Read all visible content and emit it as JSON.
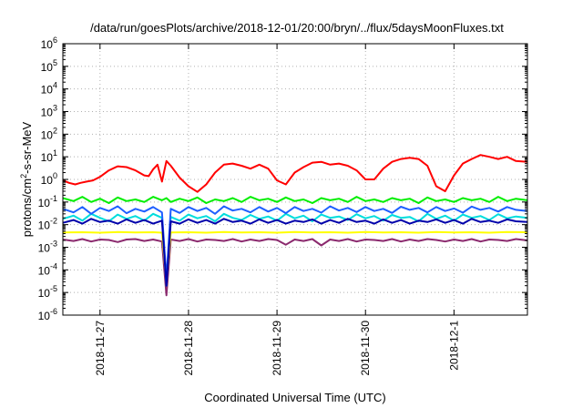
{
  "chart_data": {
    "type": "line",
    "title": "/data/run/goesPlots/archive/2018-12-01/20:00/bryn/../flux/5daysMoonFluxes.txt",
    "xlabel": "Coordinated Universal Time (UTC)",
    "ylabel": {
      "base": "protons/cm",
      "sup": "2",
      "rest": "-s-sr-MeV"
    },
    "yscale": "log",
    "ylim_exp": [
      -6,
      6
    ],
    "y_ticks": [
      {
        "base": "10",
        "exp": "6"
      },
      {
        "base": "10",
        "exp": "5"
      },
      {
        "base": "10",
        "exp": "4"
      },
      {
        "base": "10",
        "exp": "3"
      },
      {
        "base": "10",
        "exp": "2"
      },
      {
        "base": "10",
        "exp": "1"
      },
      {
        "base": "10",
        "exp": "0"
      },
      {
        "base": "10",
        "exp": "-1"
      },
      {
        "base": "10",
        "exp": "-2"
      },
      {
        "base": "10",
        "exp": "-3"
      },
      {
        "base": "10",
        "exp": "-4"
      },
      {
        "base": "10",
        "exp": "-5"
      },
      {
        "base": "10",
        "exp": "-6"
      }
    ],
    "xlim_days": [
      26.58,
      31.83
    ],
    "x_ticks": [
      {
        "label": "2018-11-27",
        "day": 27
      },
      {
        "label": "2018-11-28",
        "day": 28
      },
      {
        "label": "2018-11-29",
        "day": 29
      },
      {
        "label": "2018-11-30",
        "day": 30
      },
      {
        "label": "2018-12-1",
        "day": 31
      }
    ],
    "grid": true,
    "series": [
      {
        "color": "#ff0000",
        "x": [
          26.58,
          26.65,
          26.72,
          26.78,
          26.85,
          26.92,
          27.0,
          27.1,
          27.2,
          27.3,
          27.4,
          27.5,
          27.55,
          27.6,
          27.65,
          27.7,
          27.75,
          27.8,
          27.9,
          28.0,
          28.1,
          28.2,
          28.3,
          28.4,
          28.5,
          28.6,
          28.7,
          28.8,
          28.9,
          29.0,
          29.1,
          29.2,
          29.3,
          29.4,
          29.5,
          29.6,
          29.7,
          29.8,
          29.9,
          30.0,
          30.1,
          30.2,
          30.3,
          30.4,
          30.5,
          30.6,
          30.7,
          30.8,
          30.9,
          31.0,
          31.1,
          31.2,
          31.3,
          31.4,
          31.5,
          31.6,
          31.7,
          31.83
        ],
        "y": [
          0.9,
          0.7,
          0.6,
          0.7,
          0.8,
          0.9,
          1.3,
          2.5,
          3.8,
          3.5,
          2.5,
          1.5,
          1.4,
          2.8,
          4.5,
          0.8,
          6.5,
          4.0,
          1.2,
          0.5,
          0.28,
          0.6,
          2.0,
          4.5,
          5.0,
          4.0,
          3.0,
          4.5,
          3.0,
          0.9,
          0.6,
          2.0,
          3.5,
          5.5,
          6.0,
          4.5,
          5.0,
          4.0,
          2.5,
          1.0,
          1.0,
          3.0,
          6.0,
          8.0,
          9.0,
          8.0,
          4.0,
          0.5,
          0.3,
          1.5,
          5.0,
          8.0,
          12.0,
          10.0,
          8.0,
          10.0,
          6.5,
          6.0
        ]
      },
      {
        "color": "#00ee00",
        "x": [
          26.58,
          26.7,
          26.8,
          26.9,
          27.0,
          27.1,
          27.2,
          27.3,
          27.4,
          27.5,
          27.6,
          27.7,
          27.75,
          27.8,
          27.9,
          28.0,
          28.1,
          28.2,
          28.3,
          28.4,
          28.5,
          28.6,
          28.7,
          28.8,
          28.9,
          29.0,
          29.1,
          29.2,
          29.3,
          29.4,
          29.5,
          29.6,
          29.7,
          29.8,
          29.9,
          30.0,
          30.1,
          30.2,
          30.3,
          30.4,
          30.5,
          30.6,
          30.7,
          30.8,
          30.9,
          31.0,
          31.1,
          31.2,
          31.3,
          31.4,
          31.5,
          31.6,
          31.7,
          31.83
        ],
        "y": [
          0.15,
          0.11,
          0.17,
          0.1,
          0.14,
          0.09,
          0.16,
          0.11,
          0.13,
          0.1,
          0.17,
          0.12,
          0.15,
          0.1,
          0.14,
          0.11,
          0.16,
          0.09,
          0.13,
          0.11,
          0.15,
          0.1,
          0.17,
          0.12,
          0.14,
          0.1,
          0.16,
          0.11,
          0.13,
          0.09,
          0.15,
          0.12,
          0.14,
          0.1,
          0.17,
          0.11,
          0.13,
          0.1,
          0.15,
          0.12,
          0.14,
          0.09,
          0.16,
          0.11,
          0.13,
          0.1,
          0.15,
          0.12,
          0.14,
          0.1,
          0.17,
          0.11,
          0.14,
          0.12
        ]
      },
      {
        "color": "#00dddd",
        "x": [
          26.58,
          26.7,
          26.8,
          26.9,
          27.0,
          27.1,
          27.2,
          27.3,
          27.4,
          27.5,
          27.6,
          27.7,
          27.75,
          27.8,
          27.9,
          28.0,
          28.1,
          28.2,
          28.3,
          28.4,
          28.5,
          28.6,
          28.7,
          28.8,
          28.9,
          29.0,
          29.1,
          29.2,
          29.3,
          29.4,
          29.5,
          29.6,
          29.7,
          29.8,
          29.9,
          30.0,
          30.1,
          30.2,
          30.3,
          30.4,
          30.5,
          30.6,
          30.7,
          30.8,
          30.9,
          31.0,
          31.1,
          31.2,
          31.3,
          31.4,
          31.5,
          31.6,
          31.7,
          31.83
        ],
        "y": [
          0.018,
          0.025,
          0.015,
          0.03,
          0.02,
          0.014,
          0.028,
          0.018,
          0.024,
          0.015,
          0.03,
          0.02,
          2e-05,
          0.022,
          0.015,
          0.028,
          0.019,
          0.024,
          0.014,
          0.03,
          0.02,
          0.016,
          0.027,
          0.018,
          0.023,
          0.015,
          0.03,
          0.019,
          0.025,
          0.014,
          0.028,
          0.02,
          0.023,
          0.016,
          0.029,
          0.019,
          0.024,
          0.015,
          0.027,
          0.02,
          0.022,
          0.014,
          0.03,
          0.018,
          0.025,
          0.015,
          0.028,
          0.02,
          0.024,
          0.016,
          0.029,
          0.019,
          0.023,
          0.02
        ]
      },
      {
        "color": "#1e5fff",
        "x": [
          26.58,
          26.7,
          26.8,
          26.9,
          27.0,
          27.1,
          27.2,
          27.3,
          27.4,
          27.5,
          27.6,
          27.7,
          27.75,
          27.8,
          27.9,
          28.0,
          28.1,
          28.2,
          28.3,
          28.4,
          28.5,
          28.6,
          28.7,
          28.8,
          28.9,
          29.0,
          29.1,
          29.2,
          29.3,
          29.4,
          29.5,
          29.6,
          29.7,
          29.8,
          29.9,
          30.0,
          30.1,
          30.2,
          30.3,
          30.4,
          30.5,
          30.6,
          30.7,
          30.8,
          30.9,
          31.0,
          31.1,
          31.2,
          31.3,
          31.4,
          31.5,
          31.6,
          31.7,
          31.83
        ],
        "y": [
          0.05,
          0.035,
          0.06,
          0.03,
          0.055,
          0.04,
          0.065,
          0.032,
          0.05,
          0.038,
          0.06,
          0.035,
          4e-05,
          0.05,
          0.033,
          0.06,
          0.04,
          0.055,
          0.03,
          0.065,
          0.042,
          0.05,
          0.035,
          0.06,
          0.038,
          0.055,
          0.032,
          0.06,
          0.04,
          0.05,
          0.034,
          0.065,
          0.042,
          0.055,
          0.036,
          0.06,
          0.04,
          0.05,
          0.033,
          0.062,
          0.045,
          0.055,
          0.035,
          0.06,
          0.04,
          0.052,
          0.034,
          0.063,
          0.045,
          0.055,
          0.038,
          0.06,
          0.045,
          0.04
        ]
      },
      {
        "color": "#0000aa",
        "x": [
          26.58,
          26.7,
          26.8,
          26.9,
          27.0,
          27.1,
          27.2,
          27.3,
          27.4,
          27.5,
          27.6,
          27.7,
          27.75,
          27.8,
          27.9,
          28.0,
          28.1,
          28.2,
          28.3,
          28.4,
          28.5,
          28.6,
          28.7,
          28.8,
          28.9,
          29.0,
          29.1,
          29.2,
          29.3,
          29.4,
          29.5,
          29.6,
          29.7,
          29.8,
          29.9,
          30.0,
          30.1,
          30.2,
          30.3,
          30.4,
          30.5,
          30.6,
          30.7,
          30.8,
          30.9,
          31.0,
          31.1,
          31.2,
          31.3,
          31.4,
          31.5,
          31.6,
          31.7,
          31.83
        ],
        "y": [
          0.012,
          0.016,
          0.011,
          0.018,
          0.013,
          0.015,
          0.011,
          0.017,
          0.012,
          0.016,
          0.011,
          0.015,
          2e-05,
          0.014,
          0.011,
          0.017,
          0.012,
          0.016,
          0.011,
          0.018,
          0.013,
          0.015,
          0.011,
          0.017,
          0.012,
          0.016,
          0.011,
          0.015,
          0.013,
          0.017,
          0.011,
          0.016,
          0.012,
          0.018,
          0.013,
          0.015,
          0.011,
          0.017,
          0.012,
          0.016,
          0.011,
          0.015,
          0.013,
          0.017,
          0.012,
          0.016,
          0.011,
          0.018,
          0.013,
          0.015,
          0.012,
          0.017,
          0.014,
          0.013
        ]
      },
      {
        "color": "#ffff00",
        "x": [
          26.58,
          26.8,
          27.0,
          27.2,
          27.4,
          27.6,
          27.7,
          27.75,
          27.8,
          28.0,
          28.2,
          28.4,
          28.6,
          28.8,
          29.0,
          29.2,
          29.4,
          29.6,
          29.8,
          30.0,
          30.2,
          30.4,
          30.6,
          30.8,
          31.0,
          31.2,
          31.4,
          31.6,
          31.83
        ],
        "y": [
          0.0045,
          0.0046,
          0.0044,
          0.0047,
          0.0045,
          0.0046,
          0.0044,
          3e-05,
          0.0045,
          0.0046,
          0.0044,
          0.0047,
          0.0045,
          0.0046,
          0.0044,
          0.0047,
          0.0045,
          0.0046,
          0.0044,
          0.0047,
          0.0045,
          0.0046,
          0.0044,
          0.0047,
          0.0045,
          0.0046,
          0.0044,
          0.0047,
          0.0046
        ]
      },
      {
        "color": "#8b2a6e",
        "x": [
          26.58,
          26.7,
          26.8,
          26.9,
          27.0,
          27.1,
          27.2,
          27.3,
          27.4,
          27.5,
          27.6,
          27.7,
          27.75,
          27.8,
          27.9,
          28.0,
          28.1,
          28.2,
          28.3,
          28.4,
          28.5,
          28.6,
          28.7,
          28.8,
          28.9,
          29.0,
          29.1,
          29.2,
          29.3,
          29.4,
          29.5,
          29.6,
          29.7,
          29.8,
          29.9,
          30.0,
          30.1,
          30.2,
          30.3,
          30.4,
          30.5,
          30.6,
          30.7,
          30.8,
          30.9,
          31.0,
          31.1,
          31.2,
          31.3,
          31.4,
          31.5,
          31.6,
          31.7,
          31.83
        ],
        "y": [
          0.0022,
          0.0019,
          0.0023,
          0.0018,
          0.0022,
          0.0021,
          0.0017,
          0.0022,
          0.0023,
          0.0019,
          0.0022,
          0.0018,
          7.5e-06,
          0.0022,
          0.0019,
          0.0023,
          0.0018,
          0.0022,
          0.0021,
          0.0019,
          0.0023,
          0.0018,
          0.0022,
          0.0019,
          0.0023,
          0.0021,
          0.0013,
          0.0022,
          0.0019,
          0.0023,
          0.0012,
          0.0022,
          0.0019,
          0.0023,
          0.0018,
          0.0022,
          0.0021,
          0.0019,
          0.0023,
          0.0018,
          0.0022,
          0.0019,
          0.0023,
          0.0021,
          0.0018,
          0.0022,
          0.0019,
          0.0023,
          0.0018,
          0.0022,
          0.0021,
          0.0019,
          0.0023,
          0.002
        ]
      }
    ]
  }
}
